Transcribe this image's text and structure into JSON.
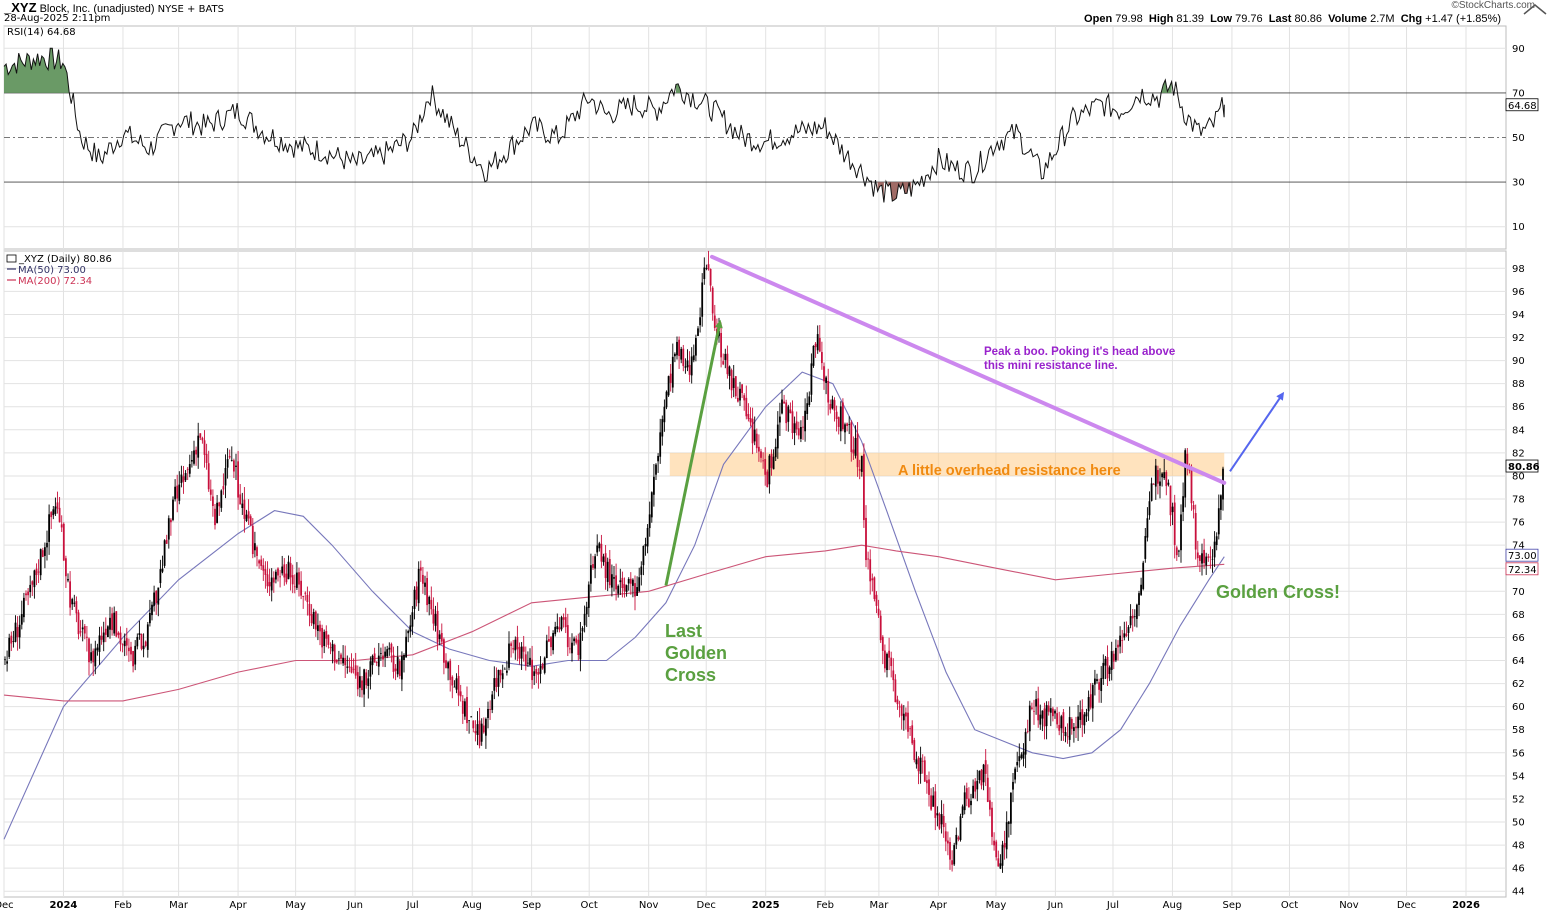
{
  "header": {
    "symbol": "_XYZ",
    "company": "Block, Inc. (unadjusted)",
    "exchange": "NYSE + BATS",
    "date": "28-Aug-2025 2:11pm",
    "brand": "©StockCharts.com",
    "open_label": "Open",
    "open": "79.98",
    "high_label": "High",
    "high": "81.39",
    "low_label": "Low",
    "low": "79.76",
    "last_label": "Last",
    "last": "80.86",
    "volume_label": "Volume",
    "volume": "2.7M",
    "chg_label": "Chg",
    "chg": "+1.47 (+1.85%)"
  },
  "chart_data": [
    {
      "type": "line",
      "name": "RSI panel",
      "legend": "RSI(14) 64.68",
      "y_ticks": [
        90,
        70,
        50,
        30,
        10
      ],
      "y_range": [
        0,
        100
      ],
      "levels": {
        "overbought": 70,
        "oversold": 30,
        "midline": 50
      },
      "last_value_label": "64.68",
      "x_dates": [
        "2023-12-01",
        "2023-12-20",
        "2024-01-01",
        "2024-01-10",
        "2024-01-20",
        "2024-02-01",
        "2024-02-15",
        "2024-03-01",
        "2024-03-15",
        "2024-04-01",
        "2024-04-15",
        "2024-05-01",
        "2024-05-15",
        "2024-06-01",
        "2024-06-15",
        "2024-07-01",
        "2024-07-10",
        "2024-07-25",
        "2024-08-08",
        "2024-08-20",
        "2024-09-01",
        "2024-09-15",
        "2024-10-01",
        "2024-10-10",
        "2024-10-25",
        "2024-11-05",
        "2024-11-15",
        "2024-11-25",
        "2024-12-05",
        "2024-12-20",
        "2025-01-01",
        "2025-01-15",
        "2025-02-01",
        "2025-02-10",
        "2025-02-20",
        "2025-03-01",
        "2025-03-10",
        "2025-03-20",
        "2025-04-01",
        "2025-04-10",
        "2025-04-20",
        "2025-05-01",
        "2025-05-12",
        "2025-05-25",
        "2025-06-10",
        "2025-06-25",
        "2025-07-05",
        "2025-07-15",
        "2025-07-25",
        "2025-08-01",
        "2025-08-08",
        "2025-08-15",
        "2025-08-22",
        "2025-08-28"
      ],
      "rsi": [
        82,
        86,
        84,
        50,
        40,
        52,
        45,
        58,
        55,
        62,
        52,
        46,
        44,
        38,
        42,
        50,
        70,
        50,
        35,
        45,
        55,
        50,
        68,
        60,
        65,
        62,
        73,
        68,
        62,
        50,
        48,
        52,
        55,
        44,
        35,
        26,
        24,
        28,
        40,
        36,
        35,
        48,
        52,
        34,
        58,
        65,
        62,
        70,
        68,
        74,
        60,
        52,
        55,
        64.68
      ]
    },
    {
      "type": "line",
      "name": "Price panel",
      "legend": "_XYZ (Daily) 80.86",
      "series": [
        {
          "name": "MA(50) 73.00",
          "color": "#7777bb",
          "x": [
            "2023-12-01",
            "2024-01-01",
            "2024-02-01",
            "2024-03-01",
            "2024-04-01",
            "2024-04-20",
            "2024-05-05",
            "2024-05-20",
            "2024-06-10",
            "2024-07-01",
            "2024-07-20",
            "2024-08-10",
            "2024-09-01",
            "2024-09-20",
            "2024-10-10",
            "2024-10-25",
            "2024-11-10",
            "2024-11-25",
            "2024-12-10",
            "2025-01-01",
            "2025-01-20",
            "2025-02-05",
            "2025-02-20",
            "2025-03-05",
            "2025-03-20",
            "2025-04-05",
            "2025-04-20",
            "2025-05-05",
            "2025-05-20",
            "2025-06-05",
            "2025-06-20",
            "2025-07-05",
            "2025-07-20",
            "2025-08-05",
            "2025-08-20",
            "2025-08-28"
          ],
          "y": [
            48.5,
            60,
            66,
            71,
            75,
            77,
            76.5,
            74,
            70,
            66.5,
            65,
            64,
            63.5,
            64,
            64,
            66,
            69,
            74,
            81,
            86,
            89,
            88,
            83,
            77,
            70,
            63,
            58,
            57,
            56,
            55.5,
            56,
            58,
            62,
            67,
            71,
            73
          ]
        },
        {
          "name": "MA(200) 72.34",
          "color": "#cc5577",
          "x": [
            "2023-12-01",
            "2024-01-01",
            "2024-02-01",
            "2024-03-01",
            "2024-04-01",
            "2024-05-01",
            "2024-06-01",
            "2024-07-01",
            "2024-08-01",
            "2024-09-01",
            "2024-10-01",
            "2024-11-01",
            "2024-12-01",
            "2025-01-01",
            "2025-02-01",
            "2025-02-20",
            "2025-03-10",
            "2025-04-01",
            "2025-05-01",
            "2025-06-01",
            "2025-07-01",
            "2025-08-01",
            "2025-08-28"
          ],
          "y": [
            61,
            60.5,
            60.5,
            61.5,
            63,
            64,
            64,
            64.5,
            66.5,
            69,
            69.5,
            70,
            71.5,
            73,
            73.5,
            74,
            73.5,
            73,
            72,
            71,
            71.5,
            72,
            72.34
          ]
        }
      ],
      "price_path": {
        "x": [
          "2023-12-01",
          "2023-12-15",
          "2023-12-28",
          "2024-01-05",
          "2024-01-15",
          "2024-01-25",
          "2024-02-05",
          "2024-02-15",
          "2024-02-28",
          "2024-03-05",
          "2024-03-12",
          "2024-03-20",
          "2024-03-28",
          "2024-04-05",
          "2024-04-15",
          "2024-04-25",
          "2024-05-05",
          "2024-05-15",
          "2024-05-25",
          "2024-06-05",
          "2024-06-15",
          "2024-06-25",
          "2024-07-05",
          "2024-07-15",
          "2024-07-25",
          "2024-08-05",
          "2024-08-12",
          "2024-08-22",
          "2024-09-03",
          "2024-09-15",
          "2024-09-25",
          "2024-10-05",
          "2024-10-15",
          "2024-10-25",
          "2024-11-01",
          "2024-11-08",
          "2024-11-15",
          "2024-11-22",
          "2024-12-01",
          "2024-12-06",
          "2024-12-12",
          "2024-12-20",
          "2025-01-02",
          "2025-01-10",
          "2025-01-20",
          "2025-01-27",
          "2025-02-03",
          "2025-02-12",
          "2025-02-20",
          "2025-02-22",
          "2025-03-03",
          "2025-03-12",
          "2025-03-22",
          "2025-04-02",
          "2025-04-08",
          "2025-04-15",
          "2025-04-25",
          "2025-05-02",
          "2025-05-08",
          "2025-05-12",
          "2025-05-20",
          "2025-05-30",
          "2025-06-10",
          "2025-06-20",
          "2025-06-30",
          "2025-07-08",
          "2025-07-15",
          "2025-07-22",
          "2025-07-28",
          "2025-08-04",
          "2025-08-08",
          "2025-08-15",
          "2025-08-22",
          "2025-08-28"
        ],
        "close": [
          64,
          70,
          78,
          69,
          64,
          68,
          64,
          67,
          78,
          80,
          84,
          76,
          82,
          76,
          71,
          72,
          70,
          66,
          64,
          62,
          65,
          63,
          72,
          66,
          61,
          57,
          62,
          65,
          63,
          67,
          65,
          74,
          70,
          70,
          76,
          85,
          91,
          89,
          98,
          93,
          89,
          86,
          80,
          86,
          83,
          92,
          87,
          84,
          81,
          74,
          65,
          60,
          55,
          50,
          47,
          52,
          54,
          45,
          51,
          55,
          60,
          59,
          58,
          61,
          64,
          67,
          70,
          80,
          81,
          73,
          82,
          72,
          73,
          80.86
        ]
      },
      "y_ticks": [
        98,
        96,
        94,
        92,
        90,
        88,
        86,
        84,
        82,
        80,
        78,
        76,
        74,
        72,
        70,
        68,
        66,
        64,
        62,
        60,
        58,
        56,
        54,
        52,
        50,
        48,
        46,
        44
      ],
      "y_range": [
        43.5,
        99.5
      ],
      "price_labels": [
        {
          "text": "80.86",
          "color": "#000000"
        },
        {
          "text": "73.00",
          "color": "#4444aa"
        },
        {
          "text": "72.34",
          "color": "#cc3355"
        }
      ],
      "trendline": {
        "from": [
          "2024-12-04",
          99.0
        ],
        "to": [
          "2025-08-28",
          79.4
        ],
        "color": "#cc88ee"
      },
      "resistance_zone": {
        "from_date": "2024-11-12",
        "to_date": "2025-08-28",
        "y_low": 80.0,
        "y_high": 82.0,
        "color": "#ffcc88"
      },
      "arrows": [
        {
          "from": [
            "2024-11-10",
            70.5
          ],
          "to": [
            "2024-12-08",
            93.2
          ],
          "color": "#5aa040"
        },
        {
          "from": [
            "2025-08-31",
            80.4
          ],
          "to": [
            "2025-09-27",
            87.0
          ],
          "color": "#5566ee"
        }
      ],
      "annotations": [
        {
          "text": "Peak a boo. Poking it's head above",
          "color": "#9922cc"
        },
        {
          "text": "this mini resistance line.",
          "color": "#9922cc"
        },
        {
          "text": "A little overhead resistance here",
          "color": "#f08a10"
        },
        {
          "text": "Last",
          "color": "#5aa040"
        },
        {
          "text": "Golden",
          "color": "#5aa040"
        },
        {
          "text": "Cross",
          "color": "#5aa040"
        },
        {
          "text": "Golden Cross!",
          "color": "#5aa040"
        }
      ]
    }
  ],
  "x_axis": {
    "labels": [
      "Dec",
      "2024",
      "Feb",
      "Mar",
      "Apr",
      "May",
      "Jun",
      "Jul",
      "Aug",
      "Sep",
      "Oct",
      "Nov",
      "Dec",
      "2025",
      "Feb",
      "Mar",
      "Apr",
      "May",
      "Jun",
      "Jul",
      "Aug",
      "Sep",
      "Oct",
      "Nov",
      "Dec",
      "2026"
    ],
    "dates": [
      "2023-12-01",
      "2024-01-01",
      "2024-02-01",
      "2024-03-01",
      "2024-04-01",
      "2024-05-01",
      "2024-06-01",
      "2024-07-01",
      "2024-08-01",
      "2024-09-01",
      "2024-10-01",
      "2024-11-01",
      "2024-12-01",
      "2025-01-01",
      "2025-02-01",
      "2025-03-01",
      "2025-04-01",
      "2025-05-01",
      "2025-06-01",
      "2025-07-01",
      "2025-08-01",
      "2025-09-01",
      "2025-10-01",
      "2025-11-01",
      "2025-12-01",
      "2026-01-01"
    ],
    "bold": [
      "2024",
      "2025",
      "2026"
    ]
  },
  "colors": {
    "up": "#000000",
    "down": "#c8103c",
    "grid": "#e2e2e2",
    "rsi_over": "#6a9a66",
    "rsi_under": "#a06b66"
  }
}
